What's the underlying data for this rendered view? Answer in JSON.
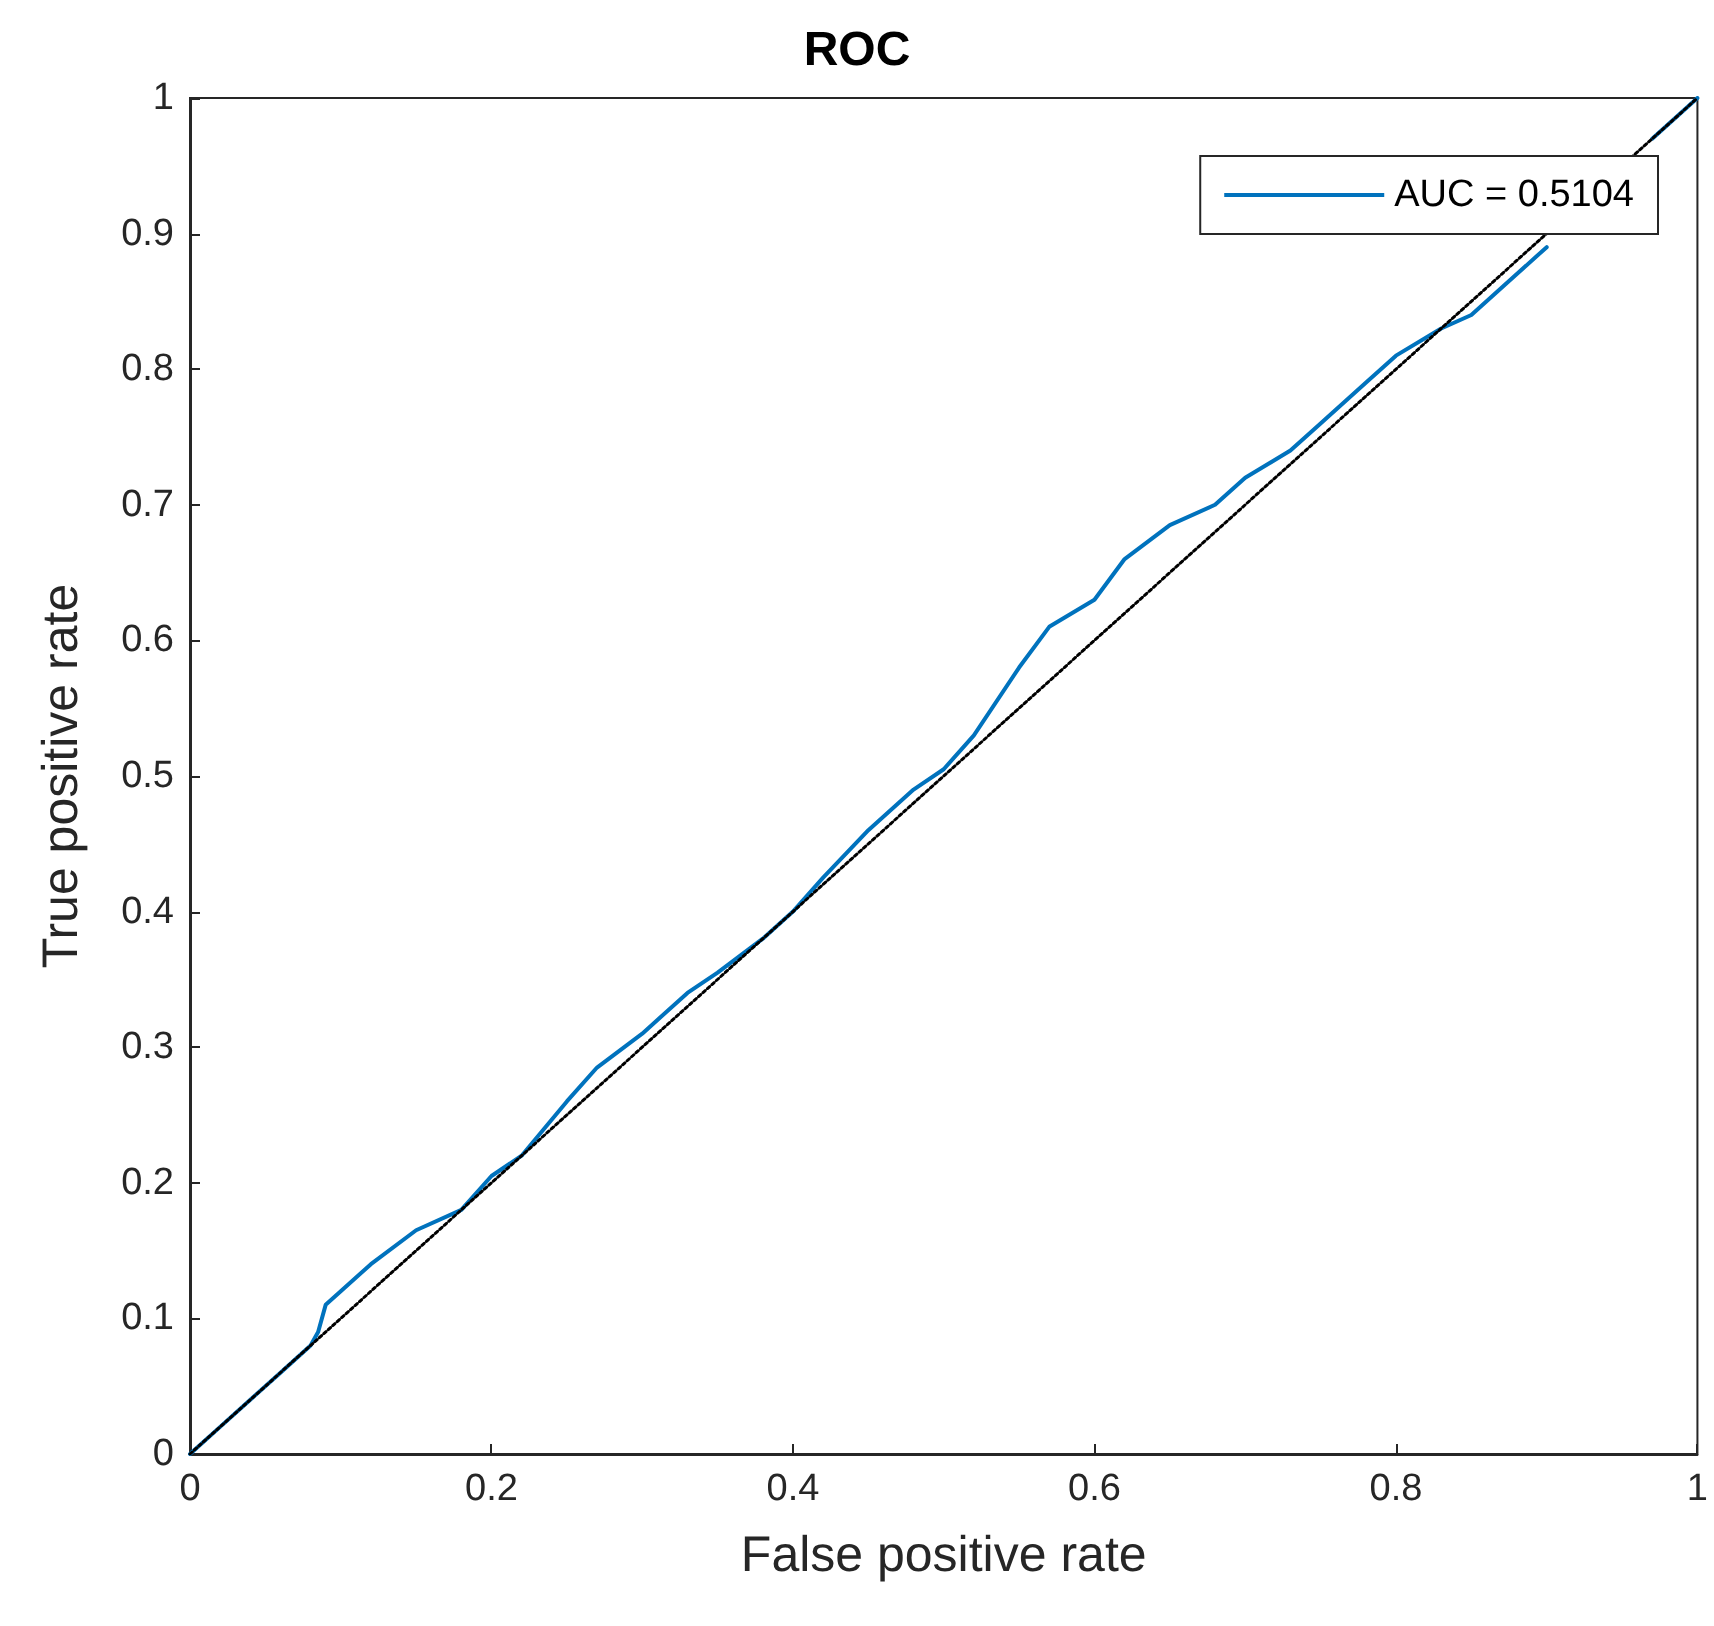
{
  "chart_data": {
    "type": "line",
    "title": "ROC",
    "xlabel": "False positive rate",
    "ylabel": "True positive rate",
    "xlim": [
      0,
      1
    ],
    "ylim": [
      0,
      1
    ],
    "xticks": [
      0,
      0.2,
      0.4,
      0.6,
      0.8,
      1
    ],
    "yticks": [
      0,
      0.1,
      0.2,
      0.3,
      0.4,
      0.5,
      0.6,
      0.7,
      0.8,
      0.9,
      1
    ],
    "grid": false,
    "legend": "top right",
    "marker": "none",
    "series": [
      {
        "name": "AUC = 0.5104",
        "color": "#0072bd",
        "line_style": "solid",
        "x": [
          0,
          0.02,
          0.04,
          0.06,
          0.08,
          0.085,
          0.09,
          0.1,
          0.12,
          0.15,
          0.18,
          0.2,
          0.22,
          0.25,
          0.27,
          0.3,
          0.33,
          0.35,
          0.38,
          0.4,
          0.42,
          0.45,
          0.48,
          0.5,
          0.52,
          0.55,
          0.57,
          0.6,
          0.62,
          0.65,
          0.68,
          0.7,
          0.73,
          0.75,
          0.78,
          0.8,
          0.83,
          0.85,
          0.88,
          0.9,
          0.93,
          0.95,
          0.97,
          1
        ],
        "values": [
          0,
          0.02,
          0.04,
          0.06,
          0.08,
          0.09,
          0.11,
          0.12,
          0.14,
          0.165,
          0.18,
          0.205,
          0.22,
          0.26,
          0.285,
          0.31,
          0.34,
          0.355,
          0.38,
          0.4,
          0.425,
          0.46,
          0.49,
          0.505,
          0.53,
          0.58,
          0.61,
          0.63,
          0.66,
          0.685,
          0.7,
          0.72,
          0.74,
          0.76,
          0.79,
          0.81,
          0.83,
          0.84,
          0.87,
          0.89,
          null,
          null,
          0.97,
          1
        ]
      },
      {
        "color": "#000000",
        "line_style": "dotted",
        "x": [
          0,
          1
        ],
        "values": [
          0,
          1
        ]
      }
    ]
  }
}
